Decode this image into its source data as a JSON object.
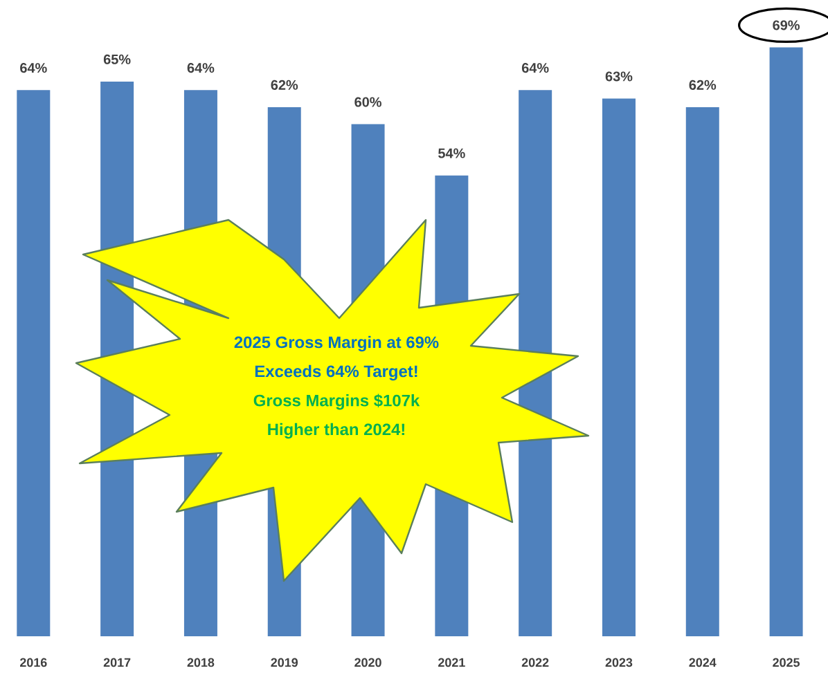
{
  "chart_data": {
    "type": "bar",
    "categories": [
      "2016",
      "2017",
      "2018",
      "2019",
      "2020",
      "2021",
      "2022",
      "2023",
      "2024",
      "2025"
    ],
    "values": [
      64,
      65,
      64,
      62,
      60,
      54,
      64,
      63,
      62,
      69
    ],
    "color": "#4f81bd",
    "value_labels": [
      "64%",
      "65%",
      "64%",
      "62%",
      "60%",
      "54%",
      "64%",
      "63%",
      "62%",
      "69%"
    ],
    "annotations": [
      "2025 Gross Margin at 69%",
      "Exceeds 64% Target!",
      "Gross Margins $107k",
      "Higher than 2024!"
    ]
  }
}
